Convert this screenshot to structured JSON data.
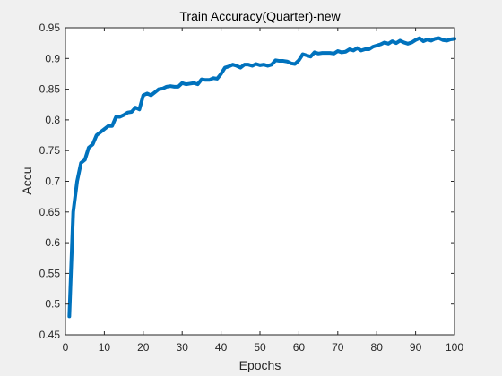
{
  "chart_data": {
    "type": "line",
    "title": "Train Accuracy(Quarter)-new",
    "xlabel": "Epochs",
    "ylabel": "Accu",
    "xlim": [
      0,
      100
    ],
    "ylim": [
      0.45,
      0.95
    ],
    "xticks": [
      0,
      10,
      20,
      30,
      40,
      50,
      60,
      70,
      80,
      90,
      100
    ],
    "yticks": [
      0.45,
      0.5,
      0.55,
      0.6,
      0.65,
      0.7,
      0.75,
      0.8,
      0.85,
      0.9,
      0.95
    ],
    "xtick_labels": [
      "0",
      "10",
      "20",
      "30",
      "40",
      "50",
      "60",
      "70",
      "80",
      "90",
      "100"
    ],
    "ytick_labels": [
      "0.45",
      "0.5",
      "0.55",
      "0.6",
      "0.65",
      "0.7",
      "0.75",
      "0.8",
      "0.85",
      "0.9",
      "0.95"
    ],
    "grid": false,
    "line_color": "#0072bd",
    "series": [
      {
        "x": [
          1,
          2,
          3,
          4,
          5,
          6,
          7,
          8,
          9,
          10,
          11,
          12,
          13,
          14,
          15,
          16,
          17,
          18,
          19,
          20,
          21,
          22,
          23,
          24,
          25,
          26,
          27,
          28,
          29,
          30,
          31,
          32,
          33,
          34,
          35,
          36,
          37,
          38,
          39,
          40,
          41,
          42,
          43,
          44,
          45,
          46,
          47,
          48,
          49,
          50,
          51,
          52,
          53,
          54,
          55,
          56,
          57,
          58,
          59,
          60,
          61,
          62,
          63,
          64,
          65,
          66,
          67,
          68,
          69,
          70,
          71,
          72,
          73,
          74,
          75,
          76,
          77,
          78,
          79,
          80,
          81,
          82,
          83,
          84,
          85,
          86,
          87,
          88,
          89,
          90,
          91,
          92,
          93,
          94,
          95,
          96,
          97,
          98,
          99,
          100
        ],
        "y": [
          0.48,
          0.65,
          0.7,
          0.73,
          0.735,
          0.755,
          0.76,
          0.775,
          0.78,
          0.785,
          0.79,
          0.79,
          0.805,
          0.805,
          0.808,
          0.812,
          0.813,
          0.82,
          0.817,
          0.84,
          0.843,
          0.84,
          0.845,
          0.85,
          0.851,
          0.854,
          0.855,
          0.854,
          0.854,
          0.86,
          0.858,
          0.859,
          0.86,
          0.858,
          0.866,
          0.865,
          0.865,
          0.868,
          0.867,
          0.875,
          0.885,
          0.887,
          0.89,
          0.888,
          0.885,
          0.89,
          0.89,
          0.888,
          0.891,
          0.889,
          0.89,
          0.888,
          0.89,
          0.897,
          0.896,
          0.896,
          0.895,
          0.892,
          0.891,
          0.897,
          0.907,
          0.905,
          0.903,
          0.91,
          0.908,
          0.909,
          0.909,
          0.909,
          0.908,
          0.912,
          0.91,
          0.911,
          0.915,
          0.913,
          0.917,
          0.913,
          0.915,
          0.915,
          0.919,
          0.921,
          0.923,
          0.926,
          0.924,
          0.928,
          0.925,
          0.929,
          0.926,
          0.924,
          0.926,
          0.93,
          0.933,
          0.928,
          0.931,
          0.929,
          0.932,
          0.933,
          0.93,
          0.929,
          0.931,
          0.932
        ]
      }
    ]
  }
}
